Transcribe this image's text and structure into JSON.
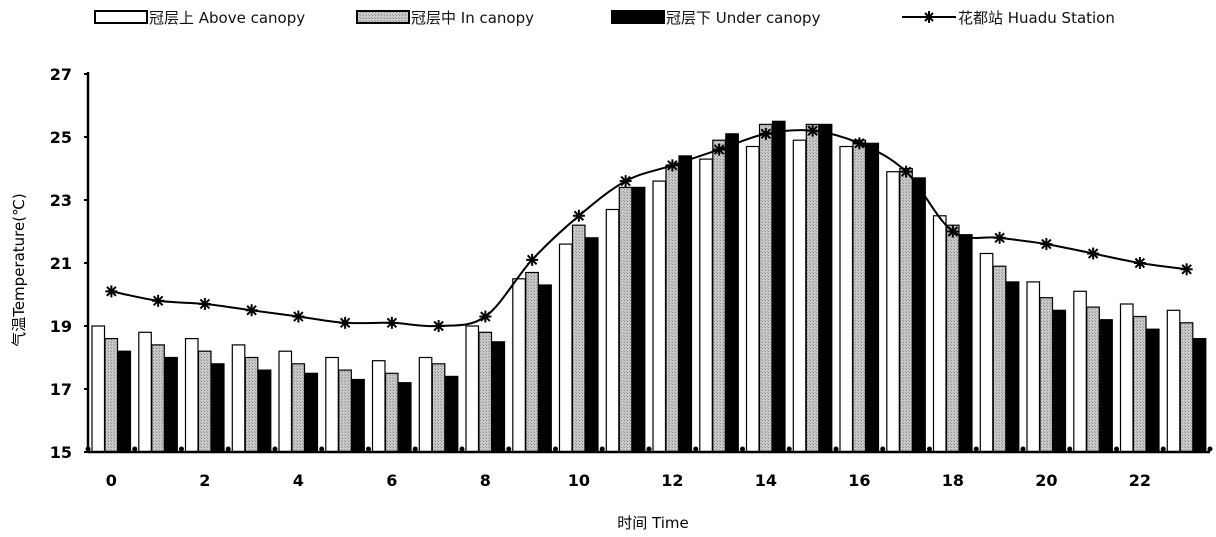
{
  "chart_data": {
    "type": "bar",
    "xlabel": "时间 Time",
    "ylabel": "气温Temperature(℃)",
    "ylim": [
      15,
      27
    ],
    "yticks": [
      "15",
      "17",
      "19",
      "21",
      "23",
      "25",
      "27"
    ],
    "x": [
      0,
      1,
      2,
      3,
      4,
      5,
      6,
      7,
      8,
      9,
      10,
      11,
      12,
      13,
      14,
      15,
      16,
      17,
      18,
      19,
      20,
      21,
      22,
      23
    ],
    "xticks": [
      "0",
      "2",
      "4",
      "6",
      "8",
      "10",
      "12",
      "14",
      "16",
      "18",
      "20",
      "22"
    ],
    "legend_position": "top",
    "series": [
      {
        "name": "冠层上 Above canopy",
        "kind": "bar",
        "pattern": "white",
        "values": [
          19.0,
          18.8,
          18.6,
          18.4,
          18.2,
          18.0,
          17.9,
          18.0,
          19.0,
          20.5,
          21.6,
          22.7,
          23.6,
          24.3,
          24.7,
          24.9,
          24.7,
          23.9,
          22.5,
          21.3,
          20.4,
          20.1,
          19.7,
          19.5
        ]
      },
      {
        "name": "冠层中 In canopy",
        "kind": "bar",
        "pattern": "gray",
        "values": [
          18.6,
          18.4,
          18.2,
          18.0,
          17.8,
          17.6,
          17.5,
          17.8,
          18.8,
          20.7,
          22.2,
          23.4,
          24.1,
          24.9,
          25.4,
          25.4,
          24.9,
          24.0,
          22.2,
          20.9,
          19.9,
          19.6,
          19.3,
          19.1
        ]
      },
      {
        "name": "冠层下 Under canopy",
        "kind": "bar",
        "pattern": "black",
        "values": [
          18.2,
          18.0,
          17.8,
          17.6,
          17.5,
          17.3,
          17.2,
          17.4,
          18.5,
          20.3,
          21.8,
          23.4,
          24.4,
          25.1,
          25.5,
          25.4,
          24.8,
          23.7,
          21.9,
          20.4,
          19.5,
          19.2,
          18.9,
          18.6
        ]
      },
      {
        "name": "花都站 Huadu Station",
        "kind": "line",
        "marker": "asterisk",
        "values": [
          20.1,
          19.8,
          19.7,
          19.5,
          19.3,
          19.1,
          19.1,
          19.0,
          19.3,
          21.1,
          22.5,
          23.6,
          24.1,
          24.6,
          25.1,
          25.2,
          24.8,
          23.9,
          22.0,
          21.8,
          21.6,
          21.3,
          21.0,
          20.8
        ]
      }
    ]
  }
}
